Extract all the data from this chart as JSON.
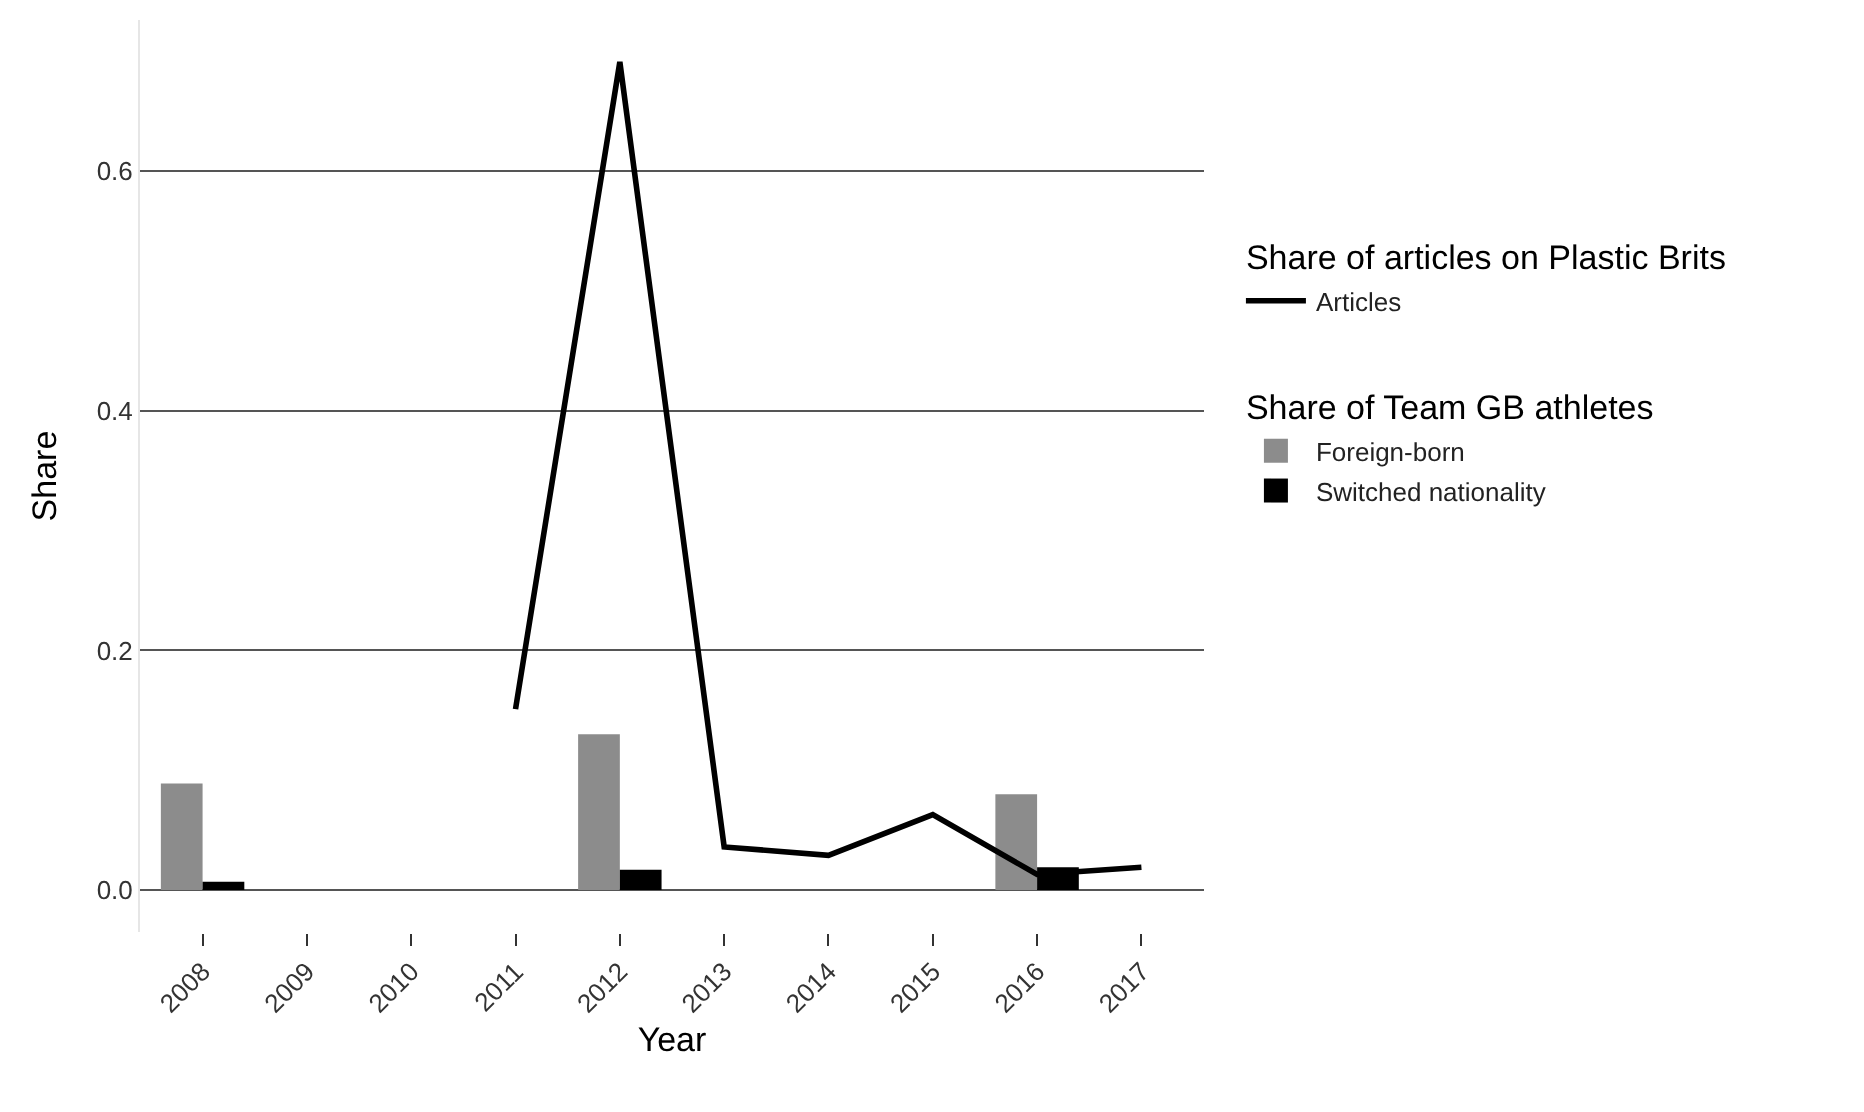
{
  "chart_data": {
    "type": "bar",
    "xlabel": "Year",
    "ylabel": "Share",
    "legend_title": [
      "Share of articles on Plastic Brits",
      "Share of Team GB athletes"
    ],
    "categories": [
      "2008",
      "2009",
      "2010",
      "2011",
      "2012",
      "2013",
      "2014",
      "2015",
      "2016",
      "2017"
    ],
    "series": [
      {
        "name": "Articles",
        "type": "line",
        "color": "#000000",
        "values": [
          null,
          null,
          null,
          0.151,
          0.691,
          0.036,
          0.029,
          0.063,
          0.013,
          0.019
        ]
      },
      {
        "name": "Foreign-born",
        "color": "#8c8c8c",
        "values": [
          0.089,
          null,
          null,
          null,
          0.13,
          null,
          null,
          null,
          0.08,
          null
        ]
      },
      {
        "name": "Switched nationality",
        "color": "#000000",
        "values": [
          0.007,
          null,
          null,
          null,
          0.017,
          null,
          null,
          null,
          0.019,
          null
        ]
      }
    ],
    "ylim": [
      -0.035,
      0.726
    ],
    "yticks": [
      {
        "value": 0,
        "label": "0.0"
      },
      0.2,
      0.4,
      0.6
    ],
    "grid": "y",
    "legend": "right"
  }
}
